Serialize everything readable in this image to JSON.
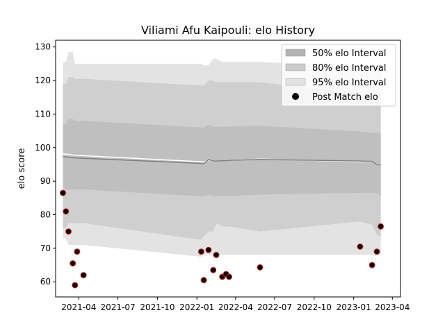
{
  "chart_data": {
    "type": "line",
    "title": "Viliami Afu Kaipouli: elo History",
    "xlabel": "",
    "ylabel": "elo score",
    "ylim": [
      55.5,
      132
    ],
    "xlim": [
      "2021-02-06",
      "2023-04-20"
    ],
    "yticks": [
      60,
      70,
      80,
      90,
      100,
      110,
      120,
      130
    ],
    "xticks": [
      "2021-04",
      "2021-07",
      "2021-10",
      "2022-01",
      "2022-04",
      "2022-07",
      "2022-10",
      "2023-01",
      "2023-04"
    ],
    "legend_position": "top-right",
    "grid": false,
    "x": [
      "2021-02-23",
      "2021-03-02",
      "2021-03-08",
      "2021-03-18",
      "2021-03-23",
      "2021-03-28",
      "2021-04-12",
      "2022-01-11",
      "2022-01-17",
      "2022-01-28",
      "2022-02-08",
      "2022-02-15",
      "2022-03-01",
      "2022-03-10",
      "2022-03-17",
      "2022-05-28",
      "2023-01-16",
      "2023-02-13",
      "2023-02-24",
      "2023-03-05"
    ],
    "series": [
      {
        "name": "Post Match elo",
        "marker": "circle",
        "color": "#000000",
        "edge_color": "#d62728",
        "values": [
          86.5,
          81,
          75,
          65.5,
          59,
          69,
          62,
          69,
          60.5,
          69.5,
          63.5,
          68,
          61.5,
          62.3,
          61.5,
          64.3,
          70.5,
          65,
          69,
          76.5
        ]
      },
      {
        "name": "",
        "color": "#ffffff",
        "values": [
          98.2,
          98,
          98,
          97.8,
          97.7,
          97.7,
          97.6,
          95.8,
          95.7,
          96.2,
          96,
          96,
          96.1,
          96.1,
          96.2,
          96.6,
          95.8,
          95.8,
          95.1,
          94.9
        ]
      },
      {
        "name": "",
        "color": "#808080",
        "values": [
          97.3,
          97.2,
          97.1,
          97,
          96.9,
          96.9,
          96.8,
          95.3,
          95.2,
          96.4,
          96,
          96,
          96.1,
          96.1,
          96.2,
          96.5,
          96,
          95.9,
          95,
          94.8
        ]
      }
    ],
    "bands": [
      {
        "name": "95% elo Interval",
        "color": "#e3e3e3",
        "upper": [
          125.5,
          125.5,
          128.5,
          128.5,
          125,
          125,
          125,
          125,
          124.5,
          124.5,
          126.5,
          126.5,
          125.5,
          125.5,
          125.5,
          125.5,
          124.5,
          124.5,
          124.5,
          124.5
        ],
        "lower": [
          73,
          73,
          71,
          71,
          71,
          71,
          71,
          67.5,
          68,
          68,
          68,
          68,
          68,
          68,
          68,
          68,
          68,
          68,
          68,
          68
        ]
      },
      {
        "name": "80% elo Interval",
        "color": "#cfcfcf",
        "upper": [
          119,
          119,
          121,
          121,
          120.5,
          120.5,
          120.5,
          118.5,
          118.5,
          120,
          120,
          119.5,
          119.5,
          119.5,
          119.5,
          119.5,
          116,
          116,
          116,
          116
        ],
        "lower": [
          76,
          76,
          77.5,
          77.5,
          77.5,
          77.5,
          77.5,
          72.5,
          73.5,
          75,
          75,
          77.5,
          76.5,
          76.5,
          76.5,
          75,
          78,
          77,
          74,
          73.5
        ]
      },
      {
        "name": "50% elo Interval",
        "color": "#bfbfbf",
        "upper": [
          107,
          107,
          108.5,
          108.5,
          108,
          108,
          108,
          106,
          106,
          106.8,
          106.2,
          106.2,
          106.3,
          106.3,
          106.3,
          106.5,
          104.8,
          104.5,
          104.5,
          104.5
        ],
        "lower": [
          87.5,
          87.5,
          87.5,
          87.5,
          87.5,
          87.5,
          87.5,
          85.5,
          85.5,
          86,
          85.5,
          85.5,
          85.5,
          85.5,
          85.5,
          86,
          86.5,
          86.5,
          86.5,
          85.5
        ]
      }
    ],
    "legend": [
      {
        "label": "50% elo Interval",
        "kind": "patch",
        "color": "#b3b3b3"
      },
      {
        "label": "80% elo Interval",
        "kind": "patch",
        "color": "#cbcbcb"
      },
      {
        "label": "95% elo Interval",
        "kind": "patch",
        "color": "#e3e3e3"
      },
      {
        "label": "Post Match elo",
        "kind": "marker",
        "color": "#000000"
      }
    ]
  }
}
